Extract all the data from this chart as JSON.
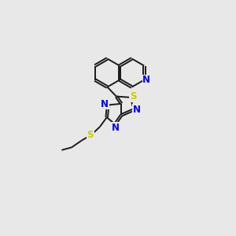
{
  "bg_color": "#e8e8e8",
  "bond_color": "#1a1a1a",
  "N_color": "#0000ee",
  "S_color": "#cccc00",
  "figsize": [
    3.0,
    3.0
  ],
  "dpi": 100,
  "lw": 1.4,
  "xlim": [
    0,
    10
  ],
  "ylim": [
    0,
    10
  ]
}
